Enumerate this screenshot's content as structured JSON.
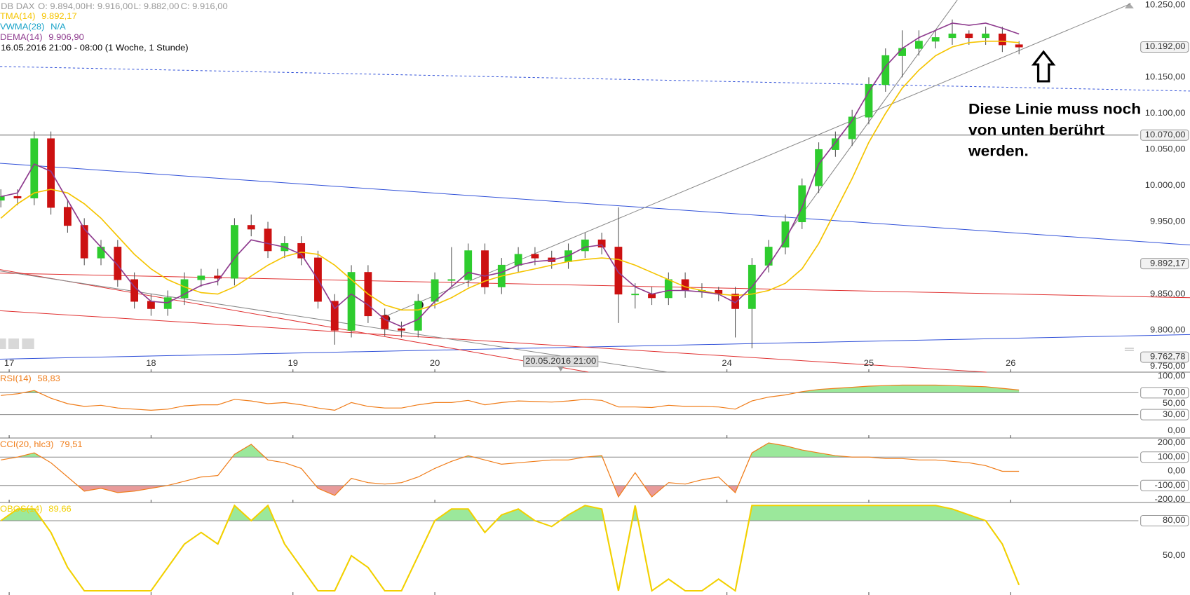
{
  "chart_data": [
    {
      "type": "candlestick",
      "title": "DB DAX",
      "quote": [
        "O: 9.894,00",
        "H: 9.916,00",
        "L: 9.882,00",
        "C: 9.916,00"
      ],
      "period": "16.05.2016 21:00 - 08:00 (1 Woche, 1 Stunde)",
      "up_color": "#2ecc2e",
      "down_color": "#cc1111",
      "x": [
        -1,
        1,
        3,
        5,
        7,
        9,
        11,
        13,
        15,
        17,
        19,
        21,
        23,
        25,
        27,
        29,
        31,
        33,
        35,
        37,
        39,
        41,
        43,
        45,
        47,
        49,
        51,
        53,
        55,
        57,
        59,
        61,
        63,
        65,
        67,
        69,
        71,
        73,
        75,
        77,
        79,
        81,
        83,
        85,
        87,
        89,
        91,
        93,
        95,
        97,
        99,
        101,
        103,
        105,
        107,
        109,
        111,
        113,
        115,
        117,
        119,
        121
      ],
      "open": [
        9980,
        9985,
        9983,
        10065,
        9970,
        9945,
        9900,
        9915,
        9870,
        9840,
        9830,
        9845,
        9870,
        9875,
        9872,
        9945,
        9940,
        9910,
        9920,
        9900,
        9840,
        9800,
        9880,
        9820,
        9802,
        9800,
        9840,
        9870,
        9870,
        9910,
        9860,
        9890,
        9905,
        9900,
        9895,
        9910,
        9925,
        9915,
        9850,
        9850,
        9845,
        9870,
        9855,
        9855,
        9850,
        9830,
        9890,
        9915,
        9950,
        10000,
        10050,
        10065,
        10095,
        10140,
        10180,
        10190,
        10200,
        10205,
        10210,
        10205,
        10210,
        10195
      ],
      "high": [
        9995,
        9995,
        10075,
        10075,
        9980,
        9955,
        9925,
        9925,
        9880,
        9850,
        9855,
        9880,
        9885,
        9885,
        9955,
        9960,
        9950,
        9930,
        9930,
        9910,
        9850,
        9890,
        9890,
        9830,
        9812,
        9850,
        9880,
        9915,
        9920,
        9920,
        9900,
        9915,
        9915,
        9910,
        9920,
        9935,
        9935,
        9970,
        9865,
        9860,
        9880,
        9880,
        9865,
        9860,
        9860,
        9900,
        9925,
        9960,
        10010,
        10060,
        10075,
        10105,
        10150,
        10190,
        10215,
        10215,
        10215,
        10230,
        10215,
        10220,
        10220,
        10200
      ],
      "low": [
        9970,
        9973,
        9973,
        9960,
        9935,
        9890,
        9890,
        9860,
        9830,
        9820,
        9820,
        9835,
        9860,
        9862,
        9862,
        9930,
        9900,
        9900,
        9890,
        9830,
        9780,
        9790,
        9810,
        9792,
        9790,
        9790,
        9830,
        9860,
        9860,
        9850,
        9850,
        9880,
        9890,
        9885,
        9885,
        9900,
        9905,
        9810,
        9830,
        9835,
        9835,
        9845,
        9845,
        9840,
        9790,
        9775,
        9880,
        9905,
        9940,
        9990,
        10040,
        10055,
        10085,
        10130,
        10150,
        10180,
        10190,
        10195,
        10195,
        10195,
        10185,
        10182
      ],
      "close": [
        9985,
        9983,
        10065,
        9970,
        9945,
        9900,
        9915,
        9870,
        9840,
        9830,
        9845,
        9870,
        9875,
        9872,
        9945,
        9940,
        9910,
        9920,
        9900,
        9840,
        9800,
        9880,
        9820,
        9802,
        9800,
        9840,
        9870,
        9870,
        9910,
        9860,
        9890,
        9905,
        9900,
        9895,
        9910,
        9925,
        9915,
        9850,
        9850,
        9845,
        9870,
        9855,
        9855,
        9850,
        9830,
        9890,
        9915,
        9950,
        10000,
        10050,
        10065,
        10095,
        10140,
        10180,
        10190,
        10200,
        10205,
        10210,
        10205,
        10210,
        10195,
        10192
      ],
      "indicators": [
        {
          "name": "TMA(14)",
          "value_label": "9.892,17",
          "color": "#f5c400",
          "values": [
            9955,
            9975,
            9990,
            9995,
            9990,
            9975,
            9955,
            9930,
            9905,
            9885,
            9870,
            9860,
            9852,
            9850,
            9860,
            9875,
            9890,
            9902,
            9908,
            9905,
            9890,
            9870,
            9850,
            9835,
            9828,
            9828,
            9835,
            9845,
            9858,
            9868,
            9875,
            9880,
            9885,
            9890,
            9895,
            9898,
            9900,
            9898,
            9890,
            9880,
            9870,
            9860,
            9855,
            9850,
            9848,
            9850,
            9855,
            9865,
            9885,
            9920,
            9965,
            10010,
            10060,
            10100,
            10135,
            10160,
            10180,
            10192,
            10198,
            10200,
            10200,
            10198
          ]
        },
        {
          "name": "VWMA(28)",
          "value_label": "N/A",
          "color": "#1aa3c8"
        },
        {
          "name": "DEMA(14)",
          "value_label": "9.906,90",
          "color": "#8e3b8e",
          "values": [
            9985,
            9990,
            10030,
            10020,
            9980,
            9940,
            9915,
            9890,
            9860,
            9840,
            9838,
            9850,
            9862,
            9868,
            9900,
            9925,
            9920,
            9915,
            9905,
            9870,
            9830,
            9850,
            9835,
            9815,
            9805,
            9815,
            9840,
            9860,
            9880,
            9875,
            9880,
            9890,
            9895,
            9897,
            9903,
            9915,
            9918,
            9880,
            9860,
            9850,
            9855,
            9855,
            9853,
            9850,
            9838,
            9860,
            9890,
            9925,
            9970,
            10030,
            10060,
            10090,
            10130,
            10165,
            10190,
            10205,
            10215,
            10225,
            10222,
            10225,
            10218,
            10210
          ]
        }
      ],
      "xlim": [
        -1.1,
        135.3
      ],
      "xticks": [
        {
          "value": 0,
          "label": "17"
        },
        {
          "value": 17,
          "label": "18"
        },
        {
          "value": 34,
          "label": "19"
        },
        {
          "value": 51,
          "label": "20"
        },
        {
          "value": 86,
          "label": "24"
        },
        {
          "value": 103,
          "label": "25"
        },
        {
          "value": 120,
          "label": "26"
        }
      ],
      "ylim": [
        9742,
        10257
      ],
      "yticks": [
        {
          "value": 10250,
          "label": "10.250,00"
        },
        {
          "value": 10150,
          "label": "10.150,00"
        },
        {
          "value": 10100,
          "label": "10.100,00"
        },
        {
          "value": 10050,
          "label": "10.050,00"
        },
        {
          "value": 10000,
          "label": "10.000,00"
        },
        {
          "value": 9950,
          "label": "9.950,00"
        },
        {
          "value": 9850,
          "label": "9.850,00"
        },
        {
          "value": 9800,
          "label": "9.800,00"
        },
        {
          "value": 9750,
          "label": "9.750,00"
        }
      ],
      "levels": [
        10070
      ],
      "price_tags": [
        {
          "value": 10192,
          "label": "10.192,00"
        },
        {
          "value": 10070,
          "label": "10.070,00"
        },
        {
          "value": 9892.17,
          "label": "9.892,17"
        },
        {
          "value": 9762.78,
          "label": "9.762,78"
        }
      ],
      "crosshair": {
        "x": 69,
        "label": "20.05.2016 21:00"
      },
      "drawings": [
        {
          "color": "#3050d8",
          "dashed": true,
          "x": [
            -1.1,
            141.5
          ],
          "y": [
            10165,
            10131
          ]
        },
        {
          "color": "#3050d8",
          "dashed": false,
          "x": [
            -1.1,
            141.5
          ],
          "y": [
            10031,
            9918
          ]
        },
        {
          "color": "#3050d8",
          "dashed": false,
          "x": [
            -1.1,
            141.5
          ],
          "y": [
            9760,
            9794
          ]
        },
        {
          "color": "#e03030",
          "dashed": false,
          "x": [
            -1.1,
            141.5
          ],
          "y": [
            9879,
            9845
          ]
        },
        {
          "color": "#e03030",
          "dashed": false,
          "x": [
            -1.1,
            117.1
          ],
          "y": [
            9827,
            9742
          ]
        },
        {
          "color": "#e03030",
          "dashed": false,
          "x": [
            -1.1,
            69.4
          ],
          "y": [
            9884,
            9742
          ]
        },
        {
          "color": "#888888",
          "dashed": false,
          "x": [
            -1.1,
            78.9
          ],
          "y": [
            9882,
            9742
          ]
        },
        {
          "color": "#888888",
          "dashed": false,
          "x": [
            44.4,
            134.4
          ],
          "y": [
            9816,
            10252
          ]
        },
        {
          "color": "#888888",
          "dashed": false,
          "x": [
            93.5,
            113.6
          ],
          "y": [
            9937,
            10257
          ]
        }
      ],
      "annotation": [
        "Diese Linie muss noch",
        "von unten berührt",
        "werden."
      ]
    },
    {
      "type": "line",
      "title": "RSI(14)",
      "value_label": "58,83",
      "color": "#f07d1a",
      "values": [
        65,
        68,
        74,
        60,
        50,
        45,
        47,
        42,
        40,
        38,
        40,
        46,
        48,
        48,
        58,
        55,
        50,
        52,
        48,
        42,
        38,
        52,
        45,
        42,
        42,
        48,
        52,
        52,
        56,
        48,
        52,
        55,
        54,
        53,
        55,
        58,
        56,
        44,
        44,
        43,
        47,
        45,
        45,
        44,
        40,
        55,
        62,
        66,
        72,
        76,
        78,
        80,
        82,
        83,
        84,
        84,
        84,
        83,
        82,
        81,
        78,
        75
      ],
      "ylim": [
        -12.8,
        105.1
      ],
      "yticks": [
        {
          "value": 100,
          "label": "100,00"
        },
        {
          "value": 50,
          "label": "50,00"
        },
        {
          "value": 0,
          "label": "0,00"
        }
      ],
      "levels": [
        {
          "value": 70,
          "label": "70,00"
        },
        {
          "value": 30,
          "label": "30,00"
        }
      ],
      "fill_above": "#9be89b"
    },
    {
      "type": "line",
      "title": "CCI(20, hlc3)",
      "value_label": "79,51",
      "color": "#f07d1a",
      "values": [
        80,
        100,
        130,
        60,
        -40,
        -140,
        -120,
        -150,
        -140,
        -120,
        -100,
        -70,
        -40,
        -30,
        120,
        190,
        80,
        60,
        20,
        -120,
        -170,
        -50,
        -80,
        -90,
        -80,
        -40,
        20,
        70,
        110,
        80,
        50,
        60,
        70,
        80,
        80,
        100,
        110,
        -180,
        -10,
        -180,
        -80,
        -90,
        -60,
        -40,
        -150,
        130,
        200,
        180,
        150,
        130,
        110,
        100,
        100,
        90,
        90,
        80,
        80,
        70,
        60,
        40,
        0,
        0
      ],
      "ylim": [
        -219.8,
        224.7
      ],
      "yticks": [
        {
          "value": 200,
          "label": "200,00"
        },
        {
          "value": 0,
          "label": "0,00"
        },
        {
          "value": -200,
          "label": "-200,00"
        }
      ],
      "levels": [
        {
          "value": 100,
          "label": "100,00"
        },
        {
          "value": -100,
          "label": "-100,00"
        }
      ],
      "fill_above": "#9be89b",
      "fill_below": "#e89a9a"
    },
    {
      "type": "line",
      "title": "OBOS(14)",
      "value_label": "89,66",
      "color": "#f2d000",
      "values": [
        80,
        90,
        90,
        70,
        40,
        20,
        20,
        20,
        20,
        20,
        40,
        60,
        70,
        60,
        93,
        80,
        93,
        60,
        40,
        20,
        20,
        50,
        40,
        20,
        20,
        50,
        80,
        90,
        90,
        70,
        85,
        90,
        80,
        75,
        85,
        93,
        90,
        20,
        93,
        20,
        30,
        20,
        20,
        30,
        20,
        93,
        93,
        93,
        93,
        93,
        93,
        93,
        93,
        93,
        93,
        93,
        93,
        90,
        85,
        80,
        60,
        25
      ],
      "ylim": [
        16.4,
        94.4
      ],
      "yticks": [
        {
          "value": 50,
          "label": "50,00"
        }
      ],
      "levels": [
        {
          "value": 80,
          "label": "80,00"
        }
      ],
      "fill_above": "#9be89b"
    }
  ]
}
